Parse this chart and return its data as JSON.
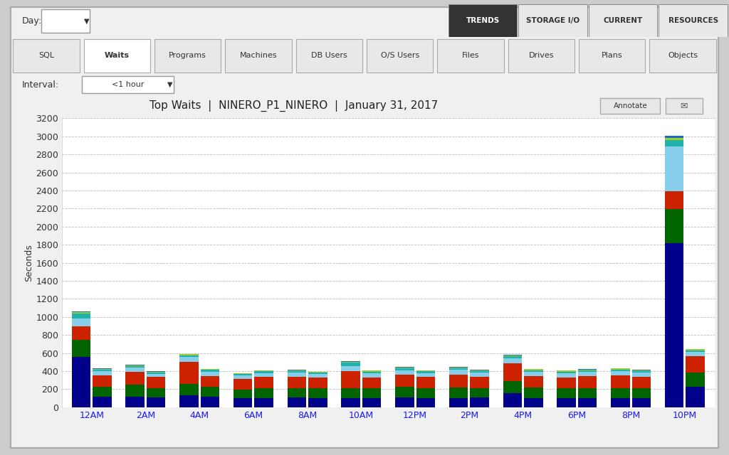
{
  "title": "Top Waits  |  NINERO_P1_NINERO  |  January 31, 2017",
  "ylabel": "Seconds",
  "ylim": [
    0,
    3200
  ],
  "yticks": [
    0,
    200,
    400,
    600,
    800,
    1000,
    1200,
    1400,
    1600,
    1800,
    2000,
    2200,
    2400,
    2600,
    2800,
    3000,
    3200
  ],
  "xlabel_labels": [
    "12AM",
    "2AM",
    "4AM",
    "6AM",
    "8AM",
    "10AM",
    "12PM",
    "2PM",
    "4PM",
    "6PM",
    "8PM",
    "10PM"
  ],
  "outer_bg": "#cccccc",
  "chart_bg": "#ffffff",
  "panel_bg": "#f0f0f0",
  "colors": [
    "#00008B",
    "#006400",
    "#CC2200",
    "#87CEEB",
    "#20B2AA",
    "#9ACD32",
    "#1E6BBF"
  ],
  "bar_width": 0.35,
  "data": {
    "12AM_a": [
      560,
      185,
      155,
      80,
      55,
      20,
      8
    ],
    "12AM_b": [
      115,
      110,
      125,
      50,
      15,
      8,
      5
    ],
    "2AM_a": [
      120,
      130,
      145,
      45,
      18,
      8,
      5
    ],
    "2AM_b": [
      110,
      100,
      125,
      35,
      15,
      8,
      4
    ],
    "4AM_a": [
      130,
      125,
      250,
      52,
      20,
      10,
      5
    ],
    "4AM_b": [
      115,
      108,
      125,
      48,
      16,
      8,
      5
    ],
    "6AM_a": [
      100,
      98,
      115,
      38,
      14,
      8,
      4
    ],
    "6AM_b": [
      100,
      112,
      125,
      42,
      18,
      8,
      5
    ],
    "8AM_a": [
      105,
      108,
      125,
      45,
      18,
      8,
      5
    ],
    "8AM_b": [
      100,
      108,
      118,
      40,
      16,
      8,
      5
    ],
    "10AM_a": [
      100,
      112,
      190,
      52,
      40,
      10,
      5
    ],
    "10AM_b": [
      100,
      108,
      125,
      45,
      18,
      10,
      5
    ],
    "12PM_a": [
      105,
      118,
      140,
      48,
      20,
      10,
      5
    ],
    "12PM_b": [
      100,
      112,
      125,
      42,
      18,
      8,
      5
    ],
    "2PM_a": [
      100,
      118,
      145,
      50,
      20,
      10,
      5
    ],
    "2PM_b": [
      105,
      108,
      125,
      45,
      18,
      8,
      5
    ],
    "4PM_a": [
      155,
      138,
      190,
      58,
      23,
      10,
      5
    ],
    "4PM_b": [
      100,
      118,
      125,
      48,
      20,
      10,
      5
    ],
    "6PM_a": [
      100,
      108,
      125,
      45,
      18,
      8,
      5
    ],
    "6PM_b": [
      100,
      112,
      130,
      48,
      18,
      8,
      5
    ],
    "8PM_a": [
      100,
      112,
      140,
      48,
      18,
      10,
      5
    ],
    "8PM_b": [
      100,
      112,
      125,
      45,
      18,
      8,
      5
    ],
    "10PM_a": [
      1820,
      375,
      200,
      490,
      72,
      28,
      18
    ],
    "10PM_b": [
      225,
      158,
      185,
      45,
      18,
      10,
      5
    ]
  },
  "tab_labels": [
    "SQL",
    "Waits",
    "Programs",
    "Machines",
    "DB Users",
    "O/S Users",
    "Files",
    "Drives",
    "Plans",
    "Objects"
  ],
  "active_tab": "Waits",
  "nav_tabs": [
    "TRENDS",
    "STORAGE I/O",
    "CURRENT",
    "RESOURCES"
  ],
  "active_nav": "TRENDS",
  "interval_value": "<1 hour",
  "day_label": "Day:",
  "title_fontsize": 11,
  "axis_fontsize": 9,
  "tick_fontsize": 9
}
